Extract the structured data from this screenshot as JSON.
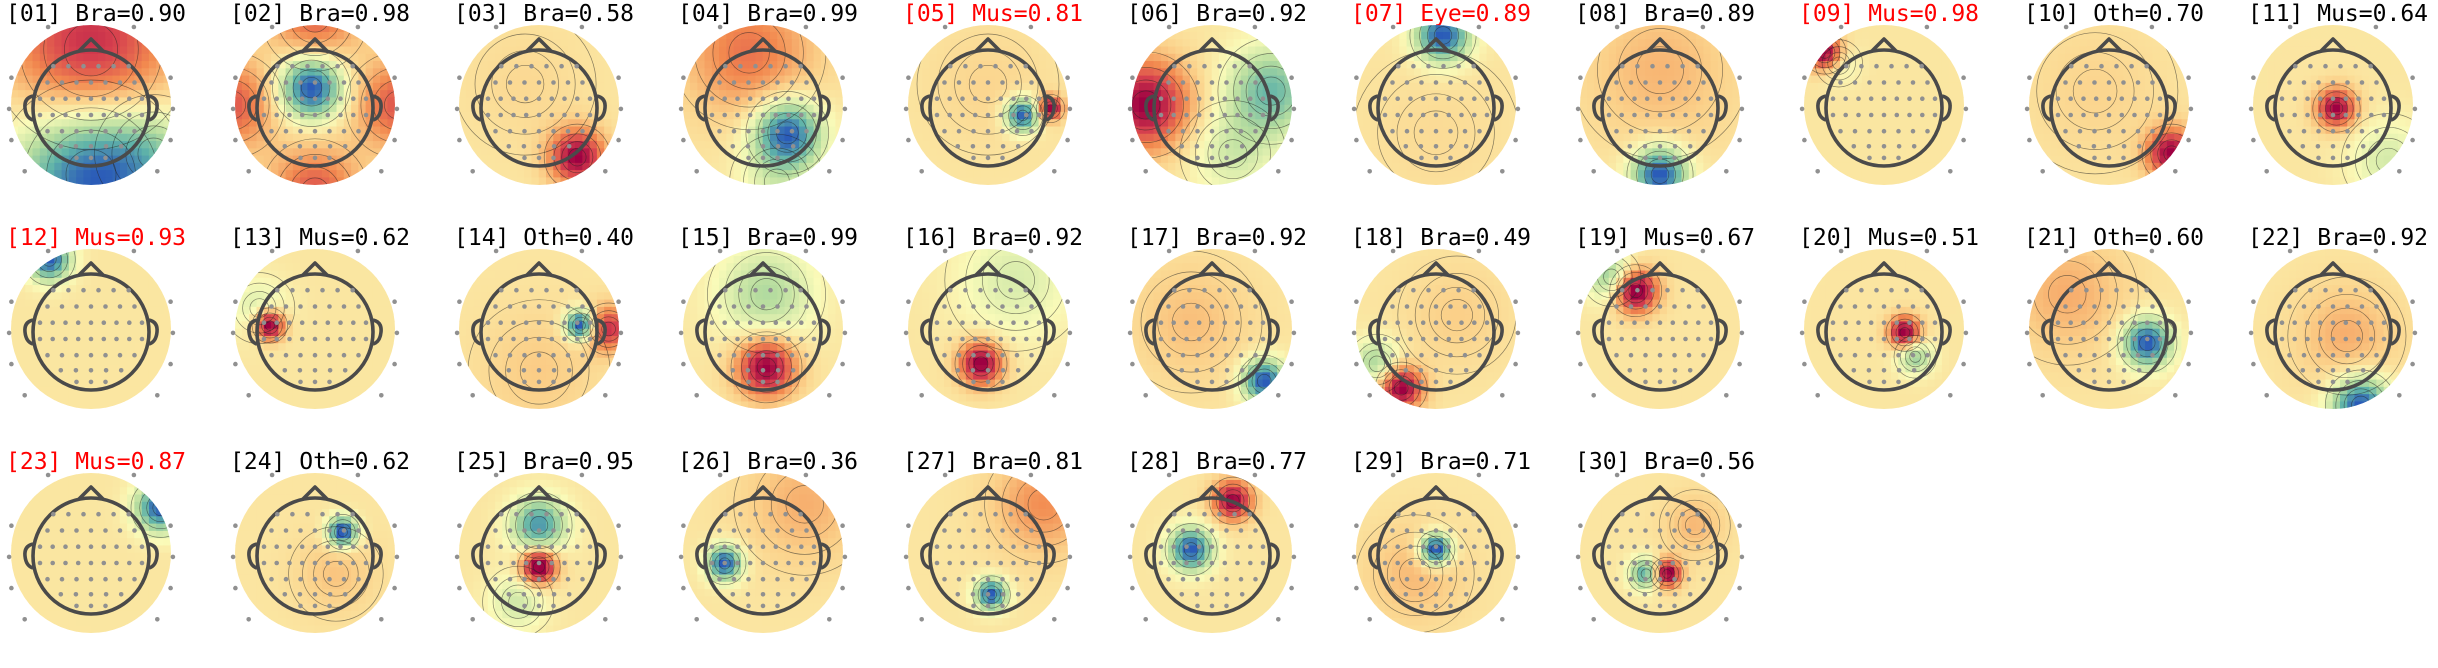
{
  "figure": {
    "type": "ICA component topoplots with classifier labels",
    "columns": 11,
    "flag_color": "#ff0000",
    "normal_color": "#000000"
  },
  "colormap": [
    "#2b5cb8",
    "#5fb3a9",
    "#b7dd9f",
    "#fafbb9",
    "#fbd089",
    "#f2894f",
    "#d6404e",
    "#9e0142"
  ],
  "components": [
    {
      "title": "[01] Bra=0.90",
      "index": "01",
      "label": "Bra",
      "score": 0.9,
      "flagged": false,
      "extrema": [
        {
          "fx": 0.0,
          "fy": -0.8,
          "w": 0.85,
          "s": 1.3
        },
        {
          "fx": 0.0,
          "fy": 1.0,
          "w": 0.8,
          "s": -1.6
        },
        {
          "fx": 0.9,
          "fy": 0.7,
          "w": 0.5,
          "s": -0.4
        }
      ]
    },
    {
      "title": "[02] Bra=0.98",
      "index": "02",
      "label": "Bra",
      "score": 0.98,
      "flagged": false,
      "extrema": [
        {
          "fx": -0.05,
          "fy": -0.25,
          "w": 0.33,
          "s": -2.8
        },
        {
          "fx": 0.0,
          "fy": 1.25,
          "w": 0.45,
          "s": 1.6
        },
        {
          "fx": -1.2,
          "fy": 0.0,
          "w": 0.45,
          "s": 1.6
        },
        {
          "fx": 1.2,
          "fy": 0.0,
          "w": 0.45,
          "s": 1.6
        },
        {
          "fx": 0.0,
          "fy": -1.25,
          "w": 0.45,
          "s": 1.5
        }
      ]
    },
    {
      "title": "[03] Bra=0.58",
      "index": "03",
      "label": "Bra",
      "score": 0.58,
      "flagged": false,
      "extrema": [
        {
          "fx": 0.55,
          "fy": 0.75,
          "w": 0.28,
          "s": 3.0
        },
        {
          "fx": -0.2,
          "fy": -0.3,
          "w": 0.6,
          "s": 0.25
        }
      ]
    },
    {
      "title": "[04] Bra=0.99",
      "index": "04",
      "label": "Bra",
      "score": 0.99,
      "flagged": false,
      "extrema": [
        {
          "fx": 0.35,
          "fy": 0.4,
          "w": 0.35,
          "s": -2.6
        },
        {
          "fx": -0.2,
          "fy": -0.75,
          "w": 0.65,
          "s": 1.3
        },
        {
          "fx": 0.2,
          "fy": 1.1,
          "w": 0.4,
          "s": -0.6
        }
      ]
    },
    {
      "title": "[05] Mus=0.81",
      "index": "05",
      "label": "Mus",
      "score": 0.81,
      "flagged": true,
      "extrema": [
        {
          "fx": 0.5,
          "fy": 0.15,
          "w": 0.17,
          "s": -3.0
        },
        {
          "fx": 0.9,
          "fy": 0.05,
          "w": 0.12,
          "s": 3.0
        },
        {
          "fx": 0.0,
          "fy": -0.3,
          "w": 0.6,
          "s": 0.3
        }
      ]
    },
    {
      "title": "[06] Bra=0.92",
      "index": "06",
      "label": "Bra",
      "score": 0.92,
      "flagged": false,
      "extrema": [
        {
          "fx": -0.95,
          "fy": 0.0,
          "w": 0.45,
          "s": 2.3
        },
        {
          "fx": 0.85,
          "fy": -0.2,
          "w": 0.45,
          "s": -1.5
        },
        {
          "fx": 0.3,
          "fy": 0.7,
          "w": 0.45,
          "s": -0.7
        }
      ]
    },
    {
      "title": "[07] Eye=0.89",
      "index": "07",
      "label": "Eye",
      "score": 0.89,
      "flagged": true,
      "extrema": [
        {
          "fx": 0.1,
          "fy": -1.0,
          "w": 0.28,
          "s": -3.0
        },
        {
          "fx": 0.0,
          "fy": 0.4,
          "w": 0.7,
          "s": 0.2
        }
      ]
    },
    {
      "title": "[08] Bra=0.89",
      "index": "08",
      "label": "Bra",
      "score": 0.89,
      "flagged": false,
      "extrema": [
        {
          "fx": 0.0,
          "fy": 1.0,
          "w": 0.28,
          "s": -3.0
        },
        {
          "fx": 0.0,
          "fy": -0.5,
          "w": 0.75,
          "s": 0.7
        }
      ]
    },
    {
      "title": "[09] Mus=0.98",
      "index": "09",
      "label": "Mus",
      "score": 0.98,
      "flagged": true,
      "extrema": [
        {
          "fx": -0.85,
          "fy": -0.75,
          "w": 0.18,
          "s": 3.0
        },
        {
          "fx": -0.65,
          "fy": -0.6,
          "w": 0.2,
          "s": -0.7
        }
      ]
    },
    {
      "title": "[10] Oth=0.70",
      "index": "10",
      "label": "Oth",
      "score": 0.7,
      "flagged": false,
      "extrema": [
        {
          "fx": 0.9,
          "fy": 0.7,
          "w": 0.25,
          "s": 2.7
        },
        {
          "fx": -0.2,
          "fy": -0.2,
          "w": 0.7,
          "s": 0.3
        }
      ]
    },
    {
      "title": "[11] Mus=0.64",
      "index": "11",
      "label": "Mus",
      "score": 0.64,
      "flagged": false,
      "extrema": [
        {
          "fx": 0.05,
          "fy": 0.05,
          "w": 0.2,
          "s": 3.0
        },
        {
          "fx": 0.8,
          "fy": 0.8,
          "w": 0.4,
          "s": -0.9
        }
      ]
    },
    {
      "title": "[12] Mus=0.93",
      "index": "12",
      "label": "Mus",
      "score": 0.93,
      "flagged": true,
      "extrema": [
        {
          "fx": -0.6,
          "fy": -1.0,
          "w": 0.22,
          "s": -3.0
        }
      ]
    },
    {
      "title": "[13] Mus=0.62",
      "index": "13",
      "label": "Mus",
      "score": 0.62,
      "flagged": false,
      "extrema": [
        {
          "fx": -0.65,
          "fy": -0.05,
          "w": 0.15,
          "s": 3.0
        },
        {
          "fx": -0.8,
          "fy": -0.3,
          "w": 0.3,
          "s": -0.7
        }
      ]
    },
    {
      "title": "[14] Oth=0.40",
      "index": "14",
      "label": "Oth",
      "score": 0.4,
      "flagged": false,
      "extrema": [
        {
          "fx": 0.6,
          "fy": -0.05,
          "w": 0.15,
          "s": -3.0
        },
        {
          "fx": 1.0,
          "fy": 0.0,
          "w": 0.22,
          "s": 2.0
        },
        {
          "fx": 0.0,
          "fy": 0.6,
          "w": 0.6,
          "s": 0.4
        }
      ]
    },
    {
      "title": "[15] Bra=0.99",
      "index": "15",
      "label": "Bra",
      "score": 0.99,
      "flagged": false,
      "extrema": [
        {
          "fx": 0.05,
          "fy": -0.5,
          "w": 0.5,
          "s": -1.2
        },
        {
          "fx": 0.05,
          "fy": 0.55,
          "w": 0.3,
          "s": 2.8
        }
      ]
    },
    {
      "title": "[16] Bra=0.92",
      "index": "16",
      "label": "Bra",
      "score": 0.92,
      "flagged": false,
      "extrema": [
        {
          "fx": -0.1,
          "fy": 0.5,
          "w": 0.22,
          "s": 3.0
        },
        {
          "fx": 0.4,
          "fy": -0.7,
          "w": 0.6,
          "s": -0.8
        }
      ]
    },
    {
      "title": "[17] Bra=0.92",
      "index": "17",
      "label": "Bra",
      "score": 0.92,
      "flagged": false,
      "extrema": [
        {
          "fx": 0.75,
          "fy": 0.75,
          "w": 0.22,
          "s": -3.0
        },
        {
          "fx": -0.3,
          "fy": -0.1,
          "w": 0.6,
          "s": 0.6
        }
      ]
    },
    {
      "title": "[18] Bra=0.49",
      "index": "18",
      "label": "Bra",
      "score": 0.49,
      "flagged": false,
      "extrema": [
        {
          "fx": -0.5,
          "fy": 0.85,
          "w": 0.22,
          "s": 3.0
        },
        {
          "fx": -0.85,
          "fy": 0.5,
          "w": 0.25,
          "s": -1.4
        },
        {
          "fx": 0.3,
          "fy": -0.2,
          "w": 0.5,
          "s": 0.4
        }
      ]
    },
    {
      "title": "[19] Mus=0.67",
      "index": "19",
      "label": "Mus",
      "score": 0.67,
      "flagged": false,
      "extrema": [
        {
          "fx": -0.35,
          "fy": -0.55,
          "w": 0.22,
          "s": 3.0
        },
        {
          "fx": -0.7,
          "fy": -0.75,
          "w": 0.25,
          "s": -1.5
        }
      ]
    },
    {
      "title": "[20] Mus=0.51",
      "index": "20",
      "label": "Mus",
      "score": 0.51,
      "flagged": false,
      "extrema": [
        {
          "fx": 0.3,
          "fy": 0.05,
          "w": 0.16,
          "s": 3.0
        },
        {
          "fx": 0.45,
          "fy": 0.4,
          "w": 0.18,
          "s": -1.5
        }
      ]
    },
    {
      "title": "[21] Oth=0.60",
      "index": "21",
      "label": "Oth",
      "score": 0.6,
      "flagged": false,
      "extrema": [
        {
          "fx": 0.55,
          "fy": 0.2,
          "w": 0.25,
          "s": -2.6
        },
        {
          "fx": -0.6,
          "fy": -0.5,
          "w": 0.6,
          "s": 0.7
        }
      ]
    },
    {
      "title": "[22] Bra=0.92",
      "index": "22",
      "label": "Bra",
      "score": 0.92,
      "flagged": false,
      "extrema": [
        {
          "fx": 0.4,
          "fy": 1.1,
          "w": 0.3,
          "s": -3.0
        },
        {
          "fx": 0.2,
          "fy": 0.1,
          "w": 0.5,
          "s": 0.8
        }
      ]
    },
    {
      "title": "[23] Mus=0.87",
      "index": "23",
      "label": "Mus",
      "score": 0.87,
      "flagged": true,
      "extrema": [
        {
          "fx": 1.0,
          "fy": -0.65,
          "w": 0.25,
          "s": -3.0
        }
      ]
    },
    {
      "title": "[24] Oth=0.62",
      "index": "24",
      "label": "Oth",
      "score": 0.62,
      "flagged": false,
      "extrema": [
        {
          "fx": 0.4,
          "fy": -0.3,
          "w": 0.15,
          "s": -3.0
        },
        {
          "fx": 0.3,
          "fy": 0.3,
          "w": 0.4,
          "s": 0.5
        }
      ]
    },
    {
      "title": "[25] Bra=0.95",
      "index": "25",
      "label": "Bra",
      "score": 0.95,
      "flagged": false,
      "extrema": [
        {
          "fx": 0.0,
          "fy": -0.4,
          "w": 0.28,
          "s": -2.0
        },
        {
          "fx": 0.0,
          "fy": 0.2,
          "w": 0.18,
          "s": 3.0
        },
        {
          "fx": -0.3,
          "fy": 0.7,
          "w": 0.3,
          "s": -0.8
        }
      ]
    },
    {
      "title": "[26] Bra=0.36",
      "index": "26",
      "label": "Bra",
      "score": 0.36,
      "flagged": false,
      "extrema": [
        {
          "fx": -0.55,
          "fy": 0.15,
          "w": 0.18,
          "s": -3.0
        },
        {
          "fx": 0.6,
          "fy": -0.7,
          "w": 0.6,
          "s": 0.8
        }
      ]
    },
    {
      "title": "[27] Bra=0.81",
      "index": "27",
      "label": "Bra",
      "score": 0.81,
      "flagged": false,
      "extrema": [
        {
          "fx": 0.05,
          "fy": 0.6,
          "w": 0.16,
          "s": -3.0
        },
        {
          "fx": 0.8,
          "fy": -0.7,
          "w": 0.5,
          "s": 1.2
        }
      ]
    },
    {
      "title": "[28] Bra=0.77",
      "index": "28",
      "label": "Bra",
      "score": 0.77,
      "flagged": false,
      "extrema": [
        {
          "fx": 0.3,
          "fy": -0.75,
          "w": 0.2,
          "s": 3.0
        },
        {
          "fx": -0.3,
          "fy": -0.05,
          "w": 0.22,
          "s": -3.0
        }
      ]
    },
    {
      "title": "[29] Bra=0.71",
      "index": "29",
      "label": "Bra",
      "score": 0.71,
      "flagged": false,
      "extrema": [
        {
          "fx": 0.0,
          "fy": -0.05,
          "w": 0.16,
          "s": -2.6
        },
        {
          "fx": -0.3,
          "fy": 0.3,
          "w": 0.5,
          "s": 0.5
        }
      ]
    },
    {
      "title": "[30] Bra=0.56",
      "index": "30",
      "label": "Bra",
      "score": 0.56,
      "flagged": false,
      "extrema": [
        {
          "fx": 0.1,
          "fy": 0.3,
          "w": 0.14,
          "s": 3.0
        },
        {
          "fx": -0.2,
          "fy": 0.3,
          "w": 0.16,
          "s": -2.0
        },
        {
          "fx": 0.5,
          "fy": -0.4,
          "w": 0.3,
          "s": 0.6
        }
      ]
    }
  ]
}
